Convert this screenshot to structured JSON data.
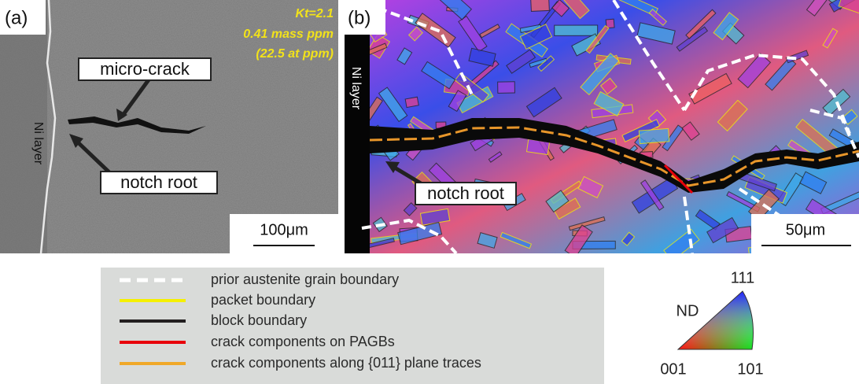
{
  "panel_a": {
    "label": "(a)",
    "annotation": [
      "Kt=2.1",
      "0.41 mass ppm",
      "(22.5 at ppm)"
    ],
    "callouts": [
      "micro-crack",
      "notch root"
    ],
    "side_label": "Ni layer",
    "scale_bar": "100μm"
  },
  "panel_b": {
    "label": "(b)",
    "callouts": [
      "notch root"
    ],
    "side_label": "Ni layer",
    "scale_bar": "50μm"
  },
  "legend": {
    "items": [
      "prior austenite grain boundary",
      "packet boundary",
      "block boundary",
      "crack components on PAGBs",
      "crack components along {011} plane traces"
    ]
  },
  "ipf": {
    "axis": "ND",
    "corners": [
      "111",
      "001",
      "101"
    ]
  }
}
